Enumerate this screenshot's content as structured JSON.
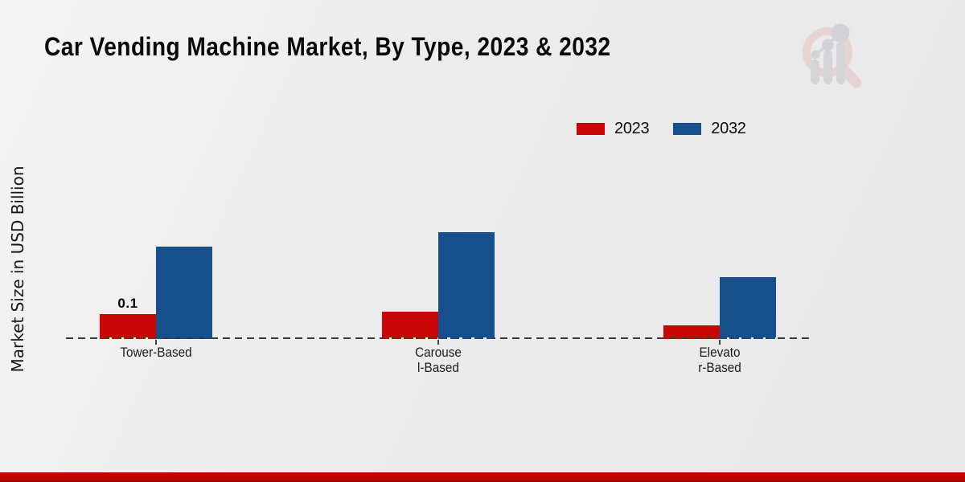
{
  "title": "Car Vending Machine Market, By Type, 2023 & 2032",
  "y_axis_label": "Market Size in USD Billion",
  "legend": {
    "position": "top-right",
    "items": [
      {
        "label": "2023",
        "color": "#c90707"
      },
      {
        "label": "2032",
        "color": "#15508d"
      }
    ]
  },
  "chart_data": {
    "type": "bar",
    "categories": [
      "Tower-Based",
      "Carousel-Based",
      "Elevator-Based"
    ],
    "category_tick_lines": [
      [
        "Tower-Based"
      ],
      [
        "Carouse",
        "l-Based"
      ],
      [
        "Elevato",
        "r-Based"
      ]
    ],
    "series": [
      {
        "name": "2023",
        "color": "#c90707",
        "values": [
          0.1,
          0.11,
          0.05
        ]
      },
      {
        "name": "2032",
        "color": "#15508d",
        "values": [
          0.39,
          0.45,
          0.26
        ]
      }
    ],
    "title": "Car Vending Machine Market, By Type, 2023 & 2032",
    "xlabel": "",
    "ylabel": "Market Size in USD Billion",
    "ylim": [
      0,
      0.55
    ],
    "grid": false,
    "legend_position": "top-right",
    "data_labels": [
      {
        "series": "2023",
        "category": "Tower-Based",
        "text": "0.1"
      }
    ]
  },
  "icons": {
    "watermark": "magnifier-bar-chart-logo"
  },
  "colors": {
    "background": "#ececec",
    "axis_dash": "#3b3b3b",
    "bar_red": "#c90707",
    "bar_blue": "#15508d",
    "footer_band": "#bd0303",
    "logo_ring": "#e7cdcd",
    "logo_gray": "#d5d5d8"
  }
}
